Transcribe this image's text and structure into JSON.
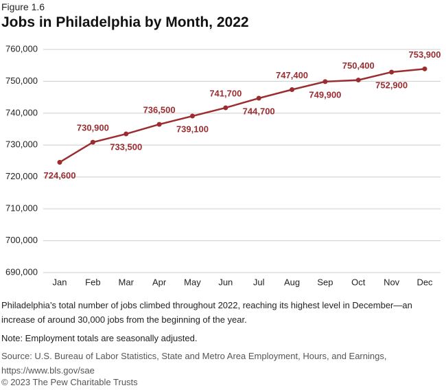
{
  "figure": "Figure 1.6",
  "chart_data": {
    "type": "line",
    "title": "Jobs in Philadelphia by Month, 2022",
    "categories": [
      "Jan",
      "Feb",
      "Mar",
      "Apr",
      "May",
      "Jun",
      "Jul",
      "Aug",
      "Sep",
      "Oct",
      "Nov",
      "Dec"
    ],
    "values": [
      724600,
      730900,
      733500,
      736500,
      739100,
      741700,
      744700,
      747400,
      749900,
      750400,
      752900,
      753900
    ],
    "value_labels": [
      "724,600",
      "730,900",
      "733,500",
      "736,500",
      "739,100",
      "741,700",
      "744,700",
      "747,400",
      "749,900",
      "750,400",
      "752,900",
      "753,900"
    ],
    "color": "#9b2d30",
    "ylim": [
      690000,
      760000
    ],
    "yticks": [
      {
        "value": 690000,
        "label": "690,000"
      },
      {
        "value": 700000,
        "label": "700,000"
      },
      {
        "value": 710000,
        "label": "710,000"
      },
      {
        "value": 720000,
        "label": "720,000"
      },
      {
        "value": 730000,
        "label": "730,000"
      },
      {
        "value": 740000,
        "label": "740,000"
      },
      {
        "value": 750000,
        "label": "750,000"
      },
      {
        "value": 760000,
        "label": "760,000"
      }
    ],
    "grid": true
  },
  "caption": "Philadelphia’s total number of jobs climbed throughout 2022, reaching its highest level in December—an increase of around 30,000 jobs from the beginning of the year.",
  "note": "Note: Employment totals are seasonally adjusted.",
  "source": "Source: U.S. Bureau of Labor Statistics, State and Metro Area Employment, Hours, and Earnings, https://www.bls.gov/sae",
  "copyright": "© 2023 The Pew Charitable Trusts"
}
